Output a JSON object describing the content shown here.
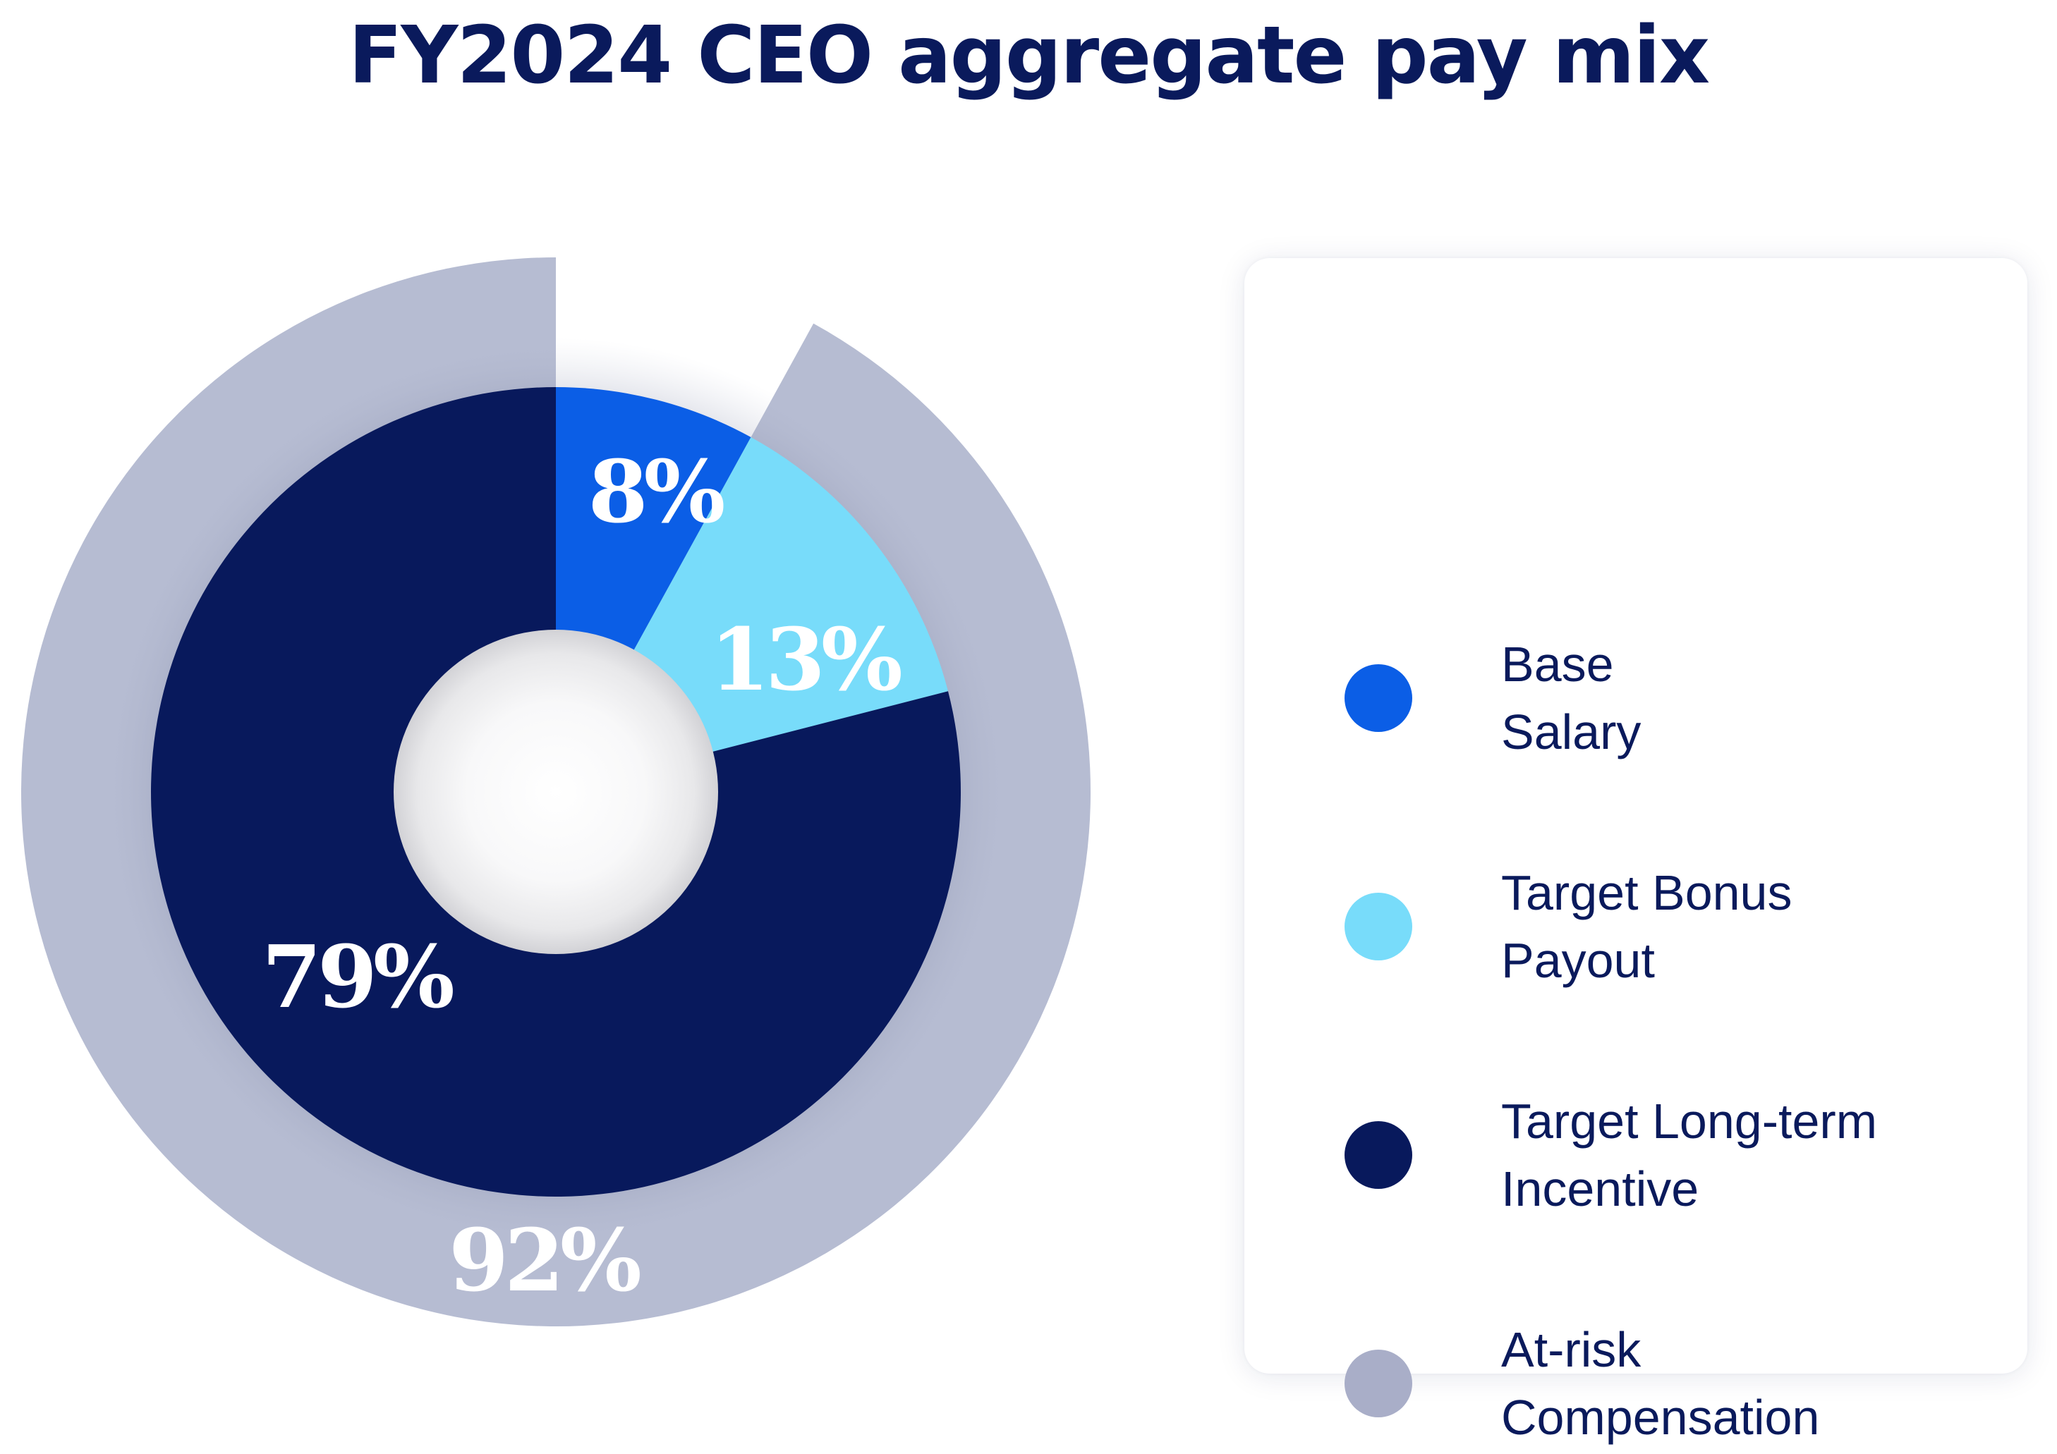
{
  "chart_data": {
    "type": "pie",
    "title": "FY2024 CEO aggregate pay mix",
    "inner_ring": {
      "series": [
        {
          "name": "Base Salary",
          "value": 8,
          "label": "8%",
          "color": "#0b5ee6"
        },
        {
          "name": "Target Bonus Payout",
          "value": 13,
          "label": "13%",
          "color": "#78dcfa"
        },
        {
          "name": "Target Long-term Incentive",
          "value": 79,
          "label": "79%",
          "color": "#08195c"
        }
      ]
    },
    "outer_ring": {
      "series": [
        {
          "name": "At-risk Compensation",
          "value": 92,
          "label": "92%",
          "color": "#b6bcd2"
        }
      ]
    },
    "legend": [
      {
        "lines": [
          "Base",
          "Salary"
        ],
        "color": "#0b5ee6"
      },
      {
        "lines": [
          "Target Bonus",
          "Payout"
        ],
        "color": "#78dcfa"
      },
      {
        "lines": [
          "Target Long-term",
          "Incentive"
        ],
        "color": "#08195c"
      },
      {
        "lines": [
          "At-risk",
          "Compensation"
        ],
        "color": "#a9aec8"
      }
    ],
    "legend_placement": "right"
  }
}
